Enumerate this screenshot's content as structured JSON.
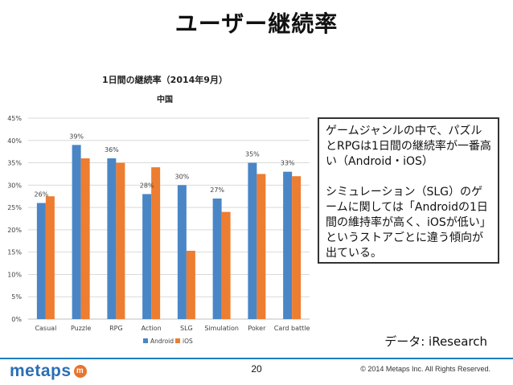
{
  "slide": {
    "title": "ユーザー継続率",
    "callout_line1": "ゲームジャンルの中で、パズルとRPGは1日間の継続率が一番高い（Android・iOS）",
    "callout_line2": "シミュレーション（SLG）のゲームに関しては「Androidの1日間の維持率が高く、iOSが低い」というストアごとに違う傾向が出ている。",
    "source": "データ: iResearch",
    "page_number": "20",
    "copyright": "© 2014 Metaps Inc. All Rights Reserved.",
    "logo_text": "metaps",
    "logo_mark": "m"
  },
  "colors": {
    "android": "#4a86c6",
    "ios": "#ed7d31",
    "grid": "#d9d9d9",
    "axis_text": "#404040",
    "footer": "#1c7fc1"
  },
  "chart_data": {
    "type": "bar",
    "title": "1日間の継続率（2014年9月）",
    "subtitle": "中国",
    "categories": [
      "Casual",
      "Puzzle",
      "RPG",
      "Action",
      "SLG",
      "Simulation",
      "Poker",
      "Card battle"
    ],
    "series": [
      {
        "name": "Android",
        "values": [
          26,
          39,
          36,
          28,
          30,
          27,
          35,
          33
        ]
      },
      {
        "name": "iOS",
        "values": [
          27.5,
          36,
          35,
          34,
          15.3,
          24,
          32.5,
          32
        ]
      }
    ],
    "data_labels": [
      "26%",
      "39%",
      "36%",
      "28%",
      "30%",
      "27%",
      "35%",
      "33%"
    ],
    "yticks": [
      "0%",
      "5%",
      "10%",
      "15%",
      "20%",
      "25%",
      "30%",
      "35%",
      "40%",
      "45%"
    ],
    "ylim": [
      0,
      45
    ],
    "xlabel": "",
    "ylabel": "",
    "legend_position": "bottom",
    "grid": true
  }
}
